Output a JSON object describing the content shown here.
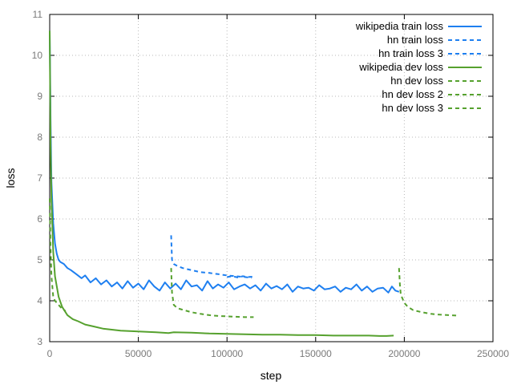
{
  "chart_data": {
    "type": "line",
    "xlabel": "step",
    "ylabel": "loss",
    "xlim": [
      0,
      250000
    ],
    "ylim": [
      3,
      11
    ],
    "x_ticks": [
      0,
      50000,
      100000,
      150000,
      200000,
      250000
    ],
    "x_tick_labels": [
      "0",
      "50000",
      "100000",
      "150000",
      "200000",
      "250000"
    ],
    "y_ticks": [
      3,
      4,
      5,
      6,
      7,
      8,
      9,
      10,
      11
    ],
    "y_tick_labels": [
      "3",
      "4",
      "5",
      "6",
      "7",
      "8",
      "9",
      "10",
      "11"
    ],
    "grid": true,
    "legend_position": "top-right",
    "series": [
      {
        "name": "wikipedia train loss",
        "color": "#1e7ff0",
        "dash": "solid",
        "x": [
          0,
          500,
          1000,
          2000,
          3000,
          4000,
          5000,
          6000,
          8000,
          10000,
          12000,
          15000,
          18000,
          20000,
          23000,
          26000,
          29000,
          32000,
          35000,
          38000,
          41000,
          44000,
          47000,
          50000,
          53000,
          56000,
          59000,
          62000,
          65000,
          68000,
          71000,
          74000,
          77000,
          80000,
          83000,
          86000,
          89000,
          92000,
          95000,
          98000,
          101000,
          104000,
          107000,
          110000,
          113000,
          116000,
          119000,
          122000,
          125000,
          128000,
          131000,
          134000,
          137000,
          140000,
          143000,
          146000,
          149000,
          152000,
          155000,
          158000,
          161000,
          164000,
          167000,
          170000,
          173000,
          176000,
          179000,
          182000,
          185000,
          188000,
          191000,
          193000,
          195000,
          197000
        ],
        "y": [
          10.6,
          8.4,
          6.9,
          5.9,
          5.4,
          5.15,
          5.0,
          4.95,
          4.9,
          4.8,
          4.75,
          4.65,
          4.55,
          4.62,
          4.45,
          4.55,
          4.4,
          4.5,
          4.35,
          4.45,
          4.3,
          4.48,
          4.32,
          4.42,
          4.28,
          4.5,
          4.35,
          4.25,
          4.45,
          4.3,
          4.42,
          4.28,
          4.5,
          4.35,
          4.38,
          4.25,
          4.48,
          4.3,
          4.4,
          4.32,
          4.45,
          4.28,
          4.35,
          4.4,
          4.3,
          4.38,
          4.25,
          4.42,
          4.3,
          4.36,
          4.28,
          4.4,
          4.22,
          4.35,
          4.3,
          4.32,
          4.25,
          4.38,
          4.28,
          4.3,
          4.35,
          4.22,
          4.32,
          4.28,
          4.4,
          4.25,
          4.35,
          4.22,
          4.3,
          4.32,
          4.2,
          4.35,
          4.25,
          4.22
        ]
      },
      {
        "name": "hn train loss",
        "color": "#1e7ff0",
        "dash": "dashed",
        "x": [
          68500,
          69000,
          70000,
          72000,
          75000,
          80000,
          85000,
          90000,
          95000,
          100000,
          105000,
          110000,
          114000
        ],
        "y": [
          5.6,
          5.0,
          4.9,
          4.85,
          4.8,
          4.75,
          4.7,
          4.68,
          4.65,
          4.62,
          4.6,
          4.58,
          4.56
        ]
      },
      {
        "name": "hn train loss 3",
        "color": "#1e7ff0",
        "dash": "dashed",
        "x": [
          100000,
          103000,
          106000,
          109000,
          112000,
          115000
        ],
        "y": [
          4.58,
          4.6,
          4.57,
          4.6,
          4.58,
          4.59
        ]
      },
      {
        "name": "wikipedia dev loss",
        "color": "#56a12e",
        "dash": "solid",
        "x": [
          0,
          500,
          1000,
          2000,
          3000,
          5000,
          7000,
          10000,
          13000,
          16000,
          20000,
          25000,
          30000,
          40000,
          50000,
          60000,
          67000,
          70000,
          80000,
          90000,
          100000,
          110000,
          120000,
          130000,
          140000,
          150000,
          160000,
          170000,
          180000,
          186000,
          190000,
          194000
        ],
        "y": [
          10.6,
          7.8,
          6.5,
          5.2,
          4.6,
          4.1,
          3.85,
          3.65,
          3.55,
          3.5,
          3.42,
          3.37,
          3.32,
          3.27,
          3.25,
          3.23,
          3.21,
          3.23,
          3.22,
          3.2,
          3.19,
          3.18,
          3.17,
          3.17,
          3.16,
          3.16,
          3.15,
          3.15,
          3.15,
          3.14,
          3.14,
          3.15
        ]
      },
      {
        "name": "hn dev loss",
        "color": "#56a12e",
        "dash": "dashed",
        "x": [
          0,
          500,
          1000,
          2000,
          3000,
          5000,
          7000,
          9000
        ],
        "y": [
          6.5,
          5.3,
          4.6,
          4.1,
          4.0,
          3.9,
          3.8,
          3.75
        ]
      },
      {
        "name": "hn dev loss 2",
        "color": "#56a12e",
        "dash": "dashed",
        "x": [
          68500,
          69000,
          70000,
          72000,
          75000,
          80000,
          85000,
          90000,
          95000,
          100000,
          105000,
          110000,
          115000
        ],
        "y": [
          4.8,
          4.2,
          3.9,
          3.82,
          3.78,
          3.72,
          3.68,
          3.65,
          3.63,
          3.62,
          3.61,
          3.6,
          3.6
        ]
      },
      {
        "name": "hn dev loss 3",
        "color": "#56a12e",
        "dash": "dashed",
        "x": [
          197000,
          197500,
          198000,
          199000,
          200000,
          202000,
          205000,
          210000,
          215000,
          220000,
          225000,
          230000
        ],
        "y": [
          4.8,
          4.4,
          4.15,
          4.05,
          3.95,
          3.85,
          3.77,
          3.72,
          3.68,
          3.66,
          3.65,
          3.64
        ]
      }
    ]
  }
}
